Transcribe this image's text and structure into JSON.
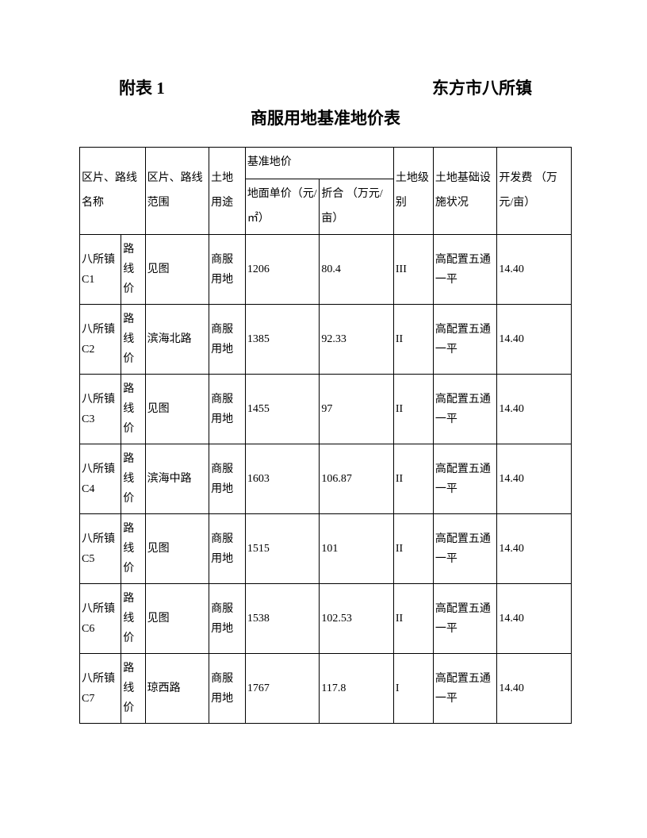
{
  "header": {
    "left": "附表 1",
    "right": "东方市八所镇"
  },
  "title": "商服用地基准地价表",
  "table": {
    "headers": {
      "col1": "区片、路线名称",
      "col2": "区片、路线范围",
      "col3": "土地用途",
      "col4_group": "基准地价",
      "col4a": "地面单价（元/㎡）",
      "col4b": "折合 （万元/亩）",
      "col5": "土地级别",
      "col6": "土地基础设施状况",
      "col7": "开发费 （万元/亩）"
    },
    "rows": [
      {
        "name1": "八所镇C1",
        "name2": "路线价",
        "scope": "见图",
        "use": "商服用地",
        "price_per_sqm": "1206",
        "price_per_mu": "80.4",
        "grade": "III",
        "infra": "高配置五通一平",
        "dev_fee": "14.40"
      },
      {
        "name1": "八所镇C2",
        "name2": "路线价",
        "scope": "滨海北路",
        "use": "商服用地",
        "price_per_sqm": "1385",
        "price_per_mu": "92.33",
        "grade": "II",
        "infra": "高配置五通一平",
        "dev_fee": "14.40"
      },
      {
        "name1": "八所镇C3",
        "name2": "路线价",
        "scope": "见图",
        "use": "商服用地",
        "price_per_sqm": "1455",
        "price_per_mu": "97",
        "grade": "II",
        "infra": "高配置五通一平",
        "dev_fee": "14.40"
      },
      {
        "name1": "八所镇C4",
        "name2": "路线价",
        "scope": "滨海中路",
        "use": "商服用地",
        "price_per_sqm": "1603",
        "price_per_mu": "106.87",
        "grade": "II",
        "infra": "高配置五通一平",
        "dev_fee": "14.40"
      },
      {
        "name1": "八所镇C5",
        "name2": "路线价",
        "scope": "见图",
        "use": "商服用地",
        "price_per_sqm": "1515",
        "price_per_mu": "101",
        "grade": "II",
        "infra": "高配置五通一平",
        "dev_fee": "14.40"
      },
      {
        "name1": "八所镇C6",
        "name2": "路线价",
        "scope": "见图",
        "use": "商服用地",
        "price_per_sqm": "1538",
        "price_per_mu": "102.53",
        "grade": "II",
        "infra": "高配置五通一平",
        "dev_fee": "14.40"
      },
      {
        "name1": "八所镇C7",
        "name2": "路线价",
        "scope": "琼西路",
        "use": "商服用地",
        "price_per_sqm": "1767",
        "price_per_mu": "117.8",
        "grade": "I",
        "infra": "高配置五通一平",
        "dev_fee": "14.40"
      }
    ]
  }
}
